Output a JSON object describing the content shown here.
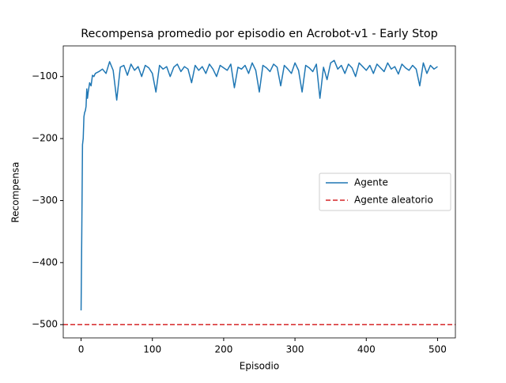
{
  "chart_data": {
    "type": "line",
    "title": "Recompensa promedio por episodio en Acrobot-v1 - Early Stop",
    "xlabel": "Episodio",
    "ylabel": "Recompensa",
    "x": [
      0,
      1,
      2,
      3,
      4,
      5,
      6,
      7,
      8,
      9,
      10,
      12,
      14,
      16,
      18,
      20,
      25,
      30,
      35,
      40,
      45,
      50,
      55,
      60,
      65,
      70,
      75,
      80,
      85,
      90,
      95,
      100,
      105,
      110,
      115,
      120,
      125,
      130,
      135,
      140,
      145,
      150,
      155,
      160,
      165,
      170,
      175,
      180,
      185,
      190,
      195,
      200,
      205,
      210,
      215,
      220,
      225,
      230,
      235,
      240,
      245,
      250,
      255,
      260,
      265,
      270,
      275,
      280,
      285,
      290,
      295,
      300,
      305,
      310,
      315,
      320,
      325,
      330,
      335,
      340,
      345,
      350,
      355,
      360,
      365,
      370,
      375,
      380,
      385,
      390,
      395,
      400,
      405,
      410,
      415,
      420,
      425,
      430,
      435,
      440,
      445,
      450,
      455,
      460,
      465,
      470,
      475,
      480,
      485,
      490,
      495,
      500
    ],
    "series": [
      {
        "name": "Agente",
        "color": "#1f77b4",
        "style": "solid",
        "values": [
          -477,
          -350,
          -210,
          -200,
          -165,
          -158,
          -155,
          -148,
          -120,
          -135,
          -125,
          -110,
          -115,
          -98,
          -100,
          -95,
          -92,
          -88,
          -95,
          -76,
          -90,
          -138,
          -85,
          -82,
          -98,
          -80,
          -90,
          -84,
          -100,
          -82,
          -86,
          -95,
          -125,
          -82,
          -88,
          -84,
          -100,
          -85,
          -80,
          -92,
          -84,
          -88,
          -110,
          -82,
          -90,
          -84,
          -95,
          -80,
          -88,
          -100,
          -82,
          -86,
          -90,
          -80,
          -118,
          -85,
          -88,
          -82,
          -95,
          -78,
          -90,
          -125,
          -82,
          -86,
          -92,
          -80,
          -85,
          -115,
          -82,
          -88,
          -95,
          -78,
          -90,
          -125,
          -82,
          -86,
          -92,
          -80,
          -135,
          -85,
          -105,
          -78,
          -74,
          -88,
          -82,
          -95,
          -80,
          -86,
          -100,
          -78,
          -84,
          -90,
          -82,
          -95,
          -80,
          -86,
          -92,
          -78,
          -88,
          -84,
          -96,
          -80,
          -86,
          -90,
          -82,
          -88,
          -115,
          -78,
          -95,
          -82,
          -88,
          -84
        ]
      },
      {
        "name": "Agente aleatorio",
        "color": "#d62728",
        "style": "dashed",
        "hline": -500
      }
    ],
    "xlim": [
      -25,
      525
    ],
    "ylim": [
      -521.4,
      -50.6
    ],
    "xticks": [
      0,
      100,
      200,
      300,
      400,
      500
    ],
    "yticks": [
      {
        "value": -500,
        "label": "−500"
      },
      {
        "value": -400,
        "label": "−400"
      },
      {
        "value": -300,
        "label": "−300"
      },
      {
        "value": -200,
        "label": "−200"
      },
      {
        "value": -100,
        "label": "−100"
      }
    ],
    "legend": "center right"
  }
}
